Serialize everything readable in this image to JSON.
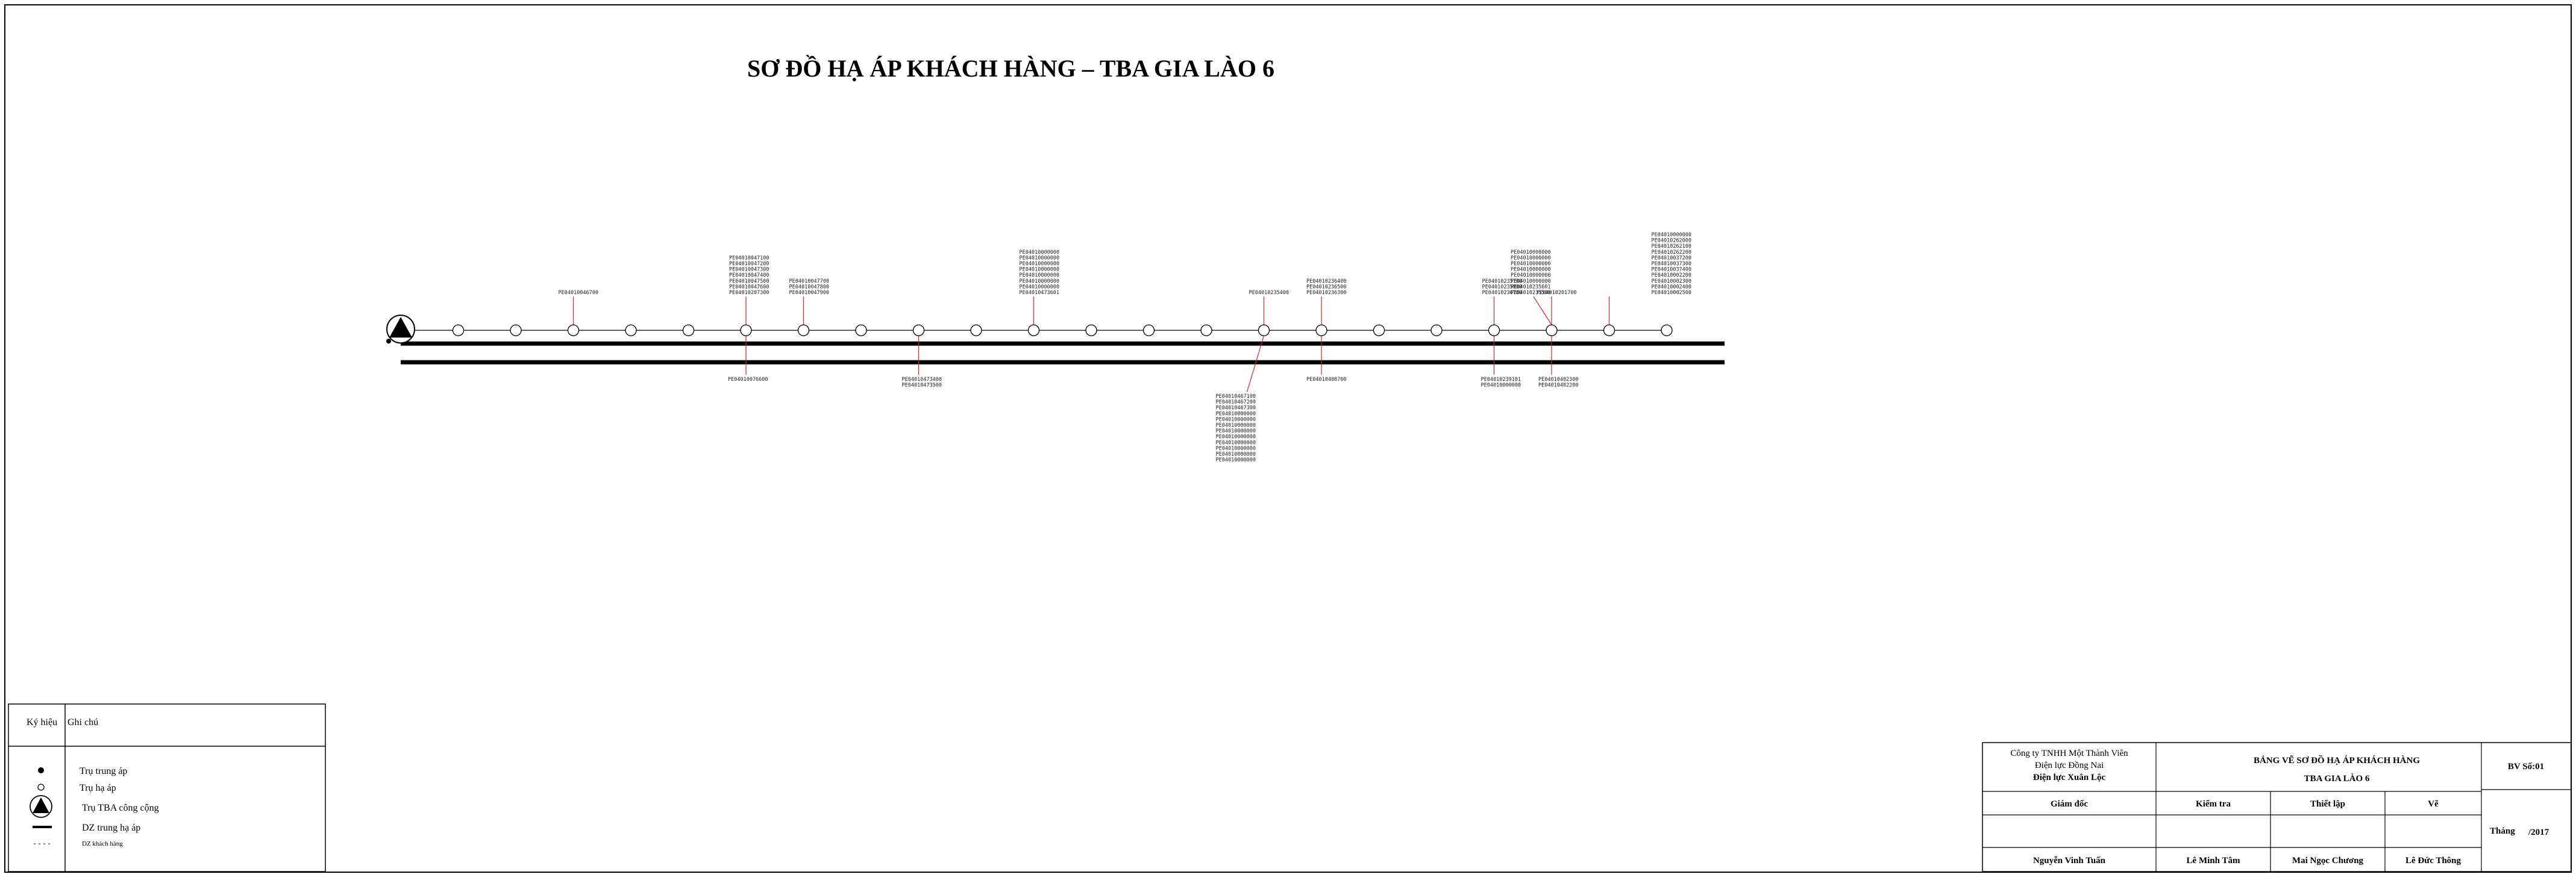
{
  "title": "SƠ ĐỒ HẠ ÁP KHÁCH HÀNG – TBA GIA LÀO 6",
  "poles_count": 22,
  "colors": {
    "line": "#000000",
    "customer_link": "#e02020",
    "text": "#000000"
  },
  "customer_groups": [
    {
      "pole": 3,
      "side": "up",
      "codes": [
        "PE04010046700"
      ]
    },
    {
      "pole": 6,
      "side": "up",
      "codes": [
        "PE04010047100",
        "PE04010047200",
        "PE04010047300",
        "PE04010047400",
        "PE04010047500",
        "PE04010047600",
        "PE04010207300"
      ]
    },
    {
      "pole": 7,
      "side": "up",
      "codes": [
        "PE04010047700",
        "PE04010047800",
        "PE04010047900"
      ]
    },
    {
      "pole": 11,
      "side": "up",
      "codes": [
        "PE04010000000",
        "PE04010000000",
        "PE04010000000",
        "PE04010000000",
        "PE04010000000",
        "PE04010000000",
        "PE04010000000",
        "PE04010473601"
      ]
    },
    {
      "pole": 15,
      "side": "up",
      "codes": [
        "PE04010235400"
      ]
    },
    {
      "pole": 16,
      "side": "up",
      "codes": [
        "PE04010236400",
        "PE04010236500",
        "PE04010236300"
      ]
    },
    {
      "pole": 19,
      "side": "up",
      "codes": [
        "PE04010235700",
        "PE04010235800",
        "PE04010236700"
      ]
    },
    {
      "pole": 20,
      "side": "up",
      "codes": [
        "PE04010000000",
        "PE04010000000",
        "PE04010000000",
        "PE04010000000",
        "PE04010000000",
        "PE04010000000",
        "PE04010235601",
        "PE04010235500"
      ]
    },
    {
      "pole": 20,
      "side": "up",
      "codes": [
        "PE04010201700"
      ]
    },
    {
      "pole": 21,
      "side": "up",
      "codes": [
        "PE04010000000",
        "PE04010262000",
        "PE04010262100",
        "PE04010262200",
        "PE04010037200",
        "PE04010037300",
        "PE04010037400",
        "PE04010002200",
        "PE04010002300",
        "PE04010002400",
        "PE04010002500"
      ]
    },
    {
      "pole": 6,
      "side": "down",
      "codes": [
        "PE04010076600"
      ]
    },
    {
      "pole": 9,
      "side": "down",
      "codes": [
        "PE04010473400",
        "PE04010473500"
      ]
    },
    {
      "pole": 15,
      "side": "down",
      "codes": [
        "PE04010467100",
        "PE04010467200",
        "PE04010467300",
        "PE04010000000",
        "PE04010000000",
        "PE04010000000",
        "PE04010000000",
        "PE04010000000",
        "PE04010000000",
        "PE04010000000",
        "PE04010000000",
        "PE04010000000"
      ]
    },
    {
      "pole": 16,
      "side": "down",
      "codes": [
        "PE04010408700"
      ]
    },
    {
      "pole": 19,
      "side": "down",
      "codes": [
        "PE04010239101",
        "PE04010000000"
      ]
    },
    {
      "pole": 20,
      "side": "down",
      "codes": [
        "PE04010402300",
        "PE04010402200"
      ]
    }
  ],
  "legend": {
    "header_symbol": "Ký hiệu",
    "header_note": "Ghi chú",
    "items": [
      {
        "icon": "filled-circle-icon",
        "label": "Trụ trung áp"
      },
      {
        "icon": "open-circle-icon",
        "label": "Trụ hạ áp"
      },
      {
        "icon": "transformer-icon",
        "label": "Trụ TBA công cộng"
      },
      {
        "icon": "thick-line-icon",
        "label": "DZ trung hạ áp"
      },
      {
        "icon": "dashed-line-icon",
        "label": "DZ khách hàng"
      }
    ]
  },
  "title_block": {
    "company_line1": "Công ty TNHH Một Thành Viên",
    "company_line2": "Điện lực Đồng Nai",
    "company_line3": "Điện lực Xuân Lộc",
    "drawing_title": "BẢNG VẼ SƠ ĐỒ HẠ ÁP KHÁCH HÀNG",
    "drawing_subtitle": "TBA GIA LÀO 6",
    "sheet_no": "BV Số:01",
    "role_director": "Giám đốc",
    "role_check": "Kiểm tra",
    "role_design": "Thiết lập",
    "role_draw": "Vẽ",
    "name_director": "Nguyễn Vinh Tuấn",
    "name_check": "Lê Minh Tâm",
    "name_design": "Mai Ngọc Chương",
    "name_draw": "Lê Đức Thông",
    "month_label": "Tháng",
    "year_value": "/2017"
  }
}
